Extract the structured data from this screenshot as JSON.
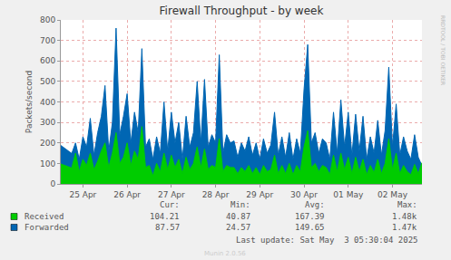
{
  "chart_data": {
    "type": "area",
    "title": "Firewall Throughput - by week",
    "y_label": "Packets/second",
    "categories": [
      null,
      null,
      null,
      null,
      null,
      null,
      "25 Apr",
      null,
      null,
      null,
      null,
      null,
      null,
      null,
      null,
      null,
      null,
      null,
      "26 Apr",
      null,
      null,
      null,
      null,
      null,
      null,
      null,
      null,
      null,
      null,
      null,
      "27 Apr",
      null,
      null,
      null,
      null,
      null,
      null,
      null,
      null,
      null,
      null,
      null,
      "28 Apr",
      null,
      null,
      null,
      null,
      null,
      null,
      null,
      null,
      null,
      null,
      null,
      "29 Apr",
      null,
      null,
      null,
      null,
      null,
      null,
      null,
      null,
      null,
      null,
      null,
      "30 Apr",
      null,
      null,
      null,
      null,
      null,
      null,
      null,
      null,
      null,
      null,
      null,
      "01 May",
      null,
      null,
      null,
      null,
      null,
      null,
      null,
      null,
      null,
      null,
      null,
      "02 May",
      null,
      null,
      null,
      null,
      null,
      null,
      null,
      null
    ],
    "series": [
      {
        "name": "Forwarded",
        "color": "#0066b3",
        "values": [
          190,
          null,
          null,
          150,
          200,
          120,
          230,
          180,
          320,
          140,
          250,
          330,
          480,
          160,
          300,
          760,
          240,
          330,
          440,
          200,
          350,
          250,
          660,
          180,
          220,
          120,
          230,
          150,
          400,
          160,
          350,
          200,
          300,
          120,
          330,
          180,
          250,
          500,
          200,
          510,
          180,
          240,
          200,
          630,
          150,
          240,
          200,
          210,
          130,
          200,
          160,
          230,
          140,
          200,
          120,
          220,
          150,
          190,
          350,
          140,
          230,
          130,
          250,
          120,
          220,
          150,
          460,
          680,
          200,
          250,
          150,
          220,
          200,
          120,
          350,
          150,
          410,
          180,
          350,
          140,
          340,
          160,
          330,
          120,
          230,
          150,
          310,
          140,
          260,
          570,
          180,
          390,
          140,
          230,
          160,
          120,
          240,
          130,
          88
        ],
        "stats": [
          87.57,
          24.57,
          149.65,
          {
            "value": 1470,
            "label": "1.47k"
          }
        ]
      },
      {
        "name": "Received",
        "color": "#00cc00",
        "values": [
          100,
          null,
          null,
          80,
          150,
          60,
          120,
          90,
          150,
          70,
          110,
          160,
          200,
          80,
          150,
          250,
          100,
          130,
          200,
          90,
          160,
          120,
          280,
          80,
          90,
          40,
          100,
          60,
          150,
          70,
          140,
          80,
          120,
          50,
          130,
          70,
          100,
          180,
          80,
          170,
          70,
          90,
          80,
          220,
          60,
          90,
          80,
          80,
          50,
          80,
          60,
          90,
          50,
          80,
          45,
          90,
          60,
          70,
          140,
          50,
          90,
          50,
          100,
          45,
          90,
          60,
          180,
          260,
          80,
          100,
          60,
          90,
          80,
          45,
          140,
          60,
          150,
          70,
          130,
          50,
          130,
          60,
          120,
          45,
          90,
          55,
          120,
          50,
          100,
          220,
          70,
          150,
          50,
          90,
          60,
          45,
          95,
          50,
          104
        ],
        "stats": [
          104.21,
          40.87,
          167.39,
          {
            "value": 1480,
            "label": "1.48k"
          }
        ]
      }
    ],
    "stats_headers": [
      "Cur:",
      "Min:",
      "Avg:",
      "Max:"
    ],
    "annotations": [
      "Last update: Sat May  3 05:30:04 2025",
      "Munin 2.0.56",
      "RRDTOOL / TOBI OETIKER"
    ],
    "ylim": [
      0,
      800
    ],
    "yticks": [
      0,
      100,
      200,
      300,
      400,
      500,
      600,
      700,
      800
    ],
    "grid": true
  }
}
